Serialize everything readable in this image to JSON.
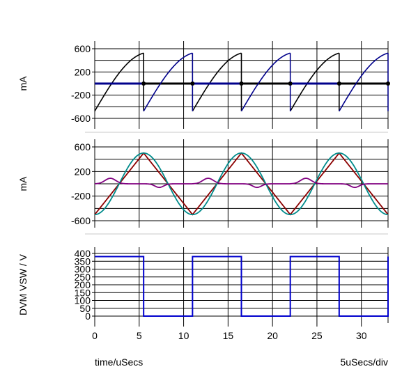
{
  "chart_data": [
    {
      "type": "line",
      "ylabel": "mA",
      "ylim": [
        -700,
        700
      ],
      "yticks": [
        600,
        200,
        -200,
        -600
      ],
      "ytick_labels": [
        "600",
        "200",
        "-200",
        "-600"
      ],
      "grid": true,
      "series": [
        {
          "color": "#000000",
          "segments": [
            [
              [
                0,
                -475
              ],
              [
                5.5,
                525
              ]
            ],
            [
              [
                5.5,
                0
              ],
              [
                11,
                0
              ]
            ],
            [
              [
                11,
                -475
              ],
              [
                16.5,
                525
              ]
            ],
            [
              [
                16.5,
                0
              ],
              [
                22,
                0
              ]
            ],
            [
              [
                22,
                -475
              ],
              [
                27.5,
                525
              ]
            ],
            [
              [
                27.5,
                0
              ],
              [
                33,
                0
              ]
            ]
          ]
        },
        {
          "color": "#00008b",
          "segments": [
            [
              [
                0,
                0
              ],
              [
                5.5,
                0
              ]
            ],
            [
              [
                5.5,
                -475
              ],
              [
                11,
                525
              ]
            ],
            [
              [
                11,
                0
              ],
              [
                16.5,
                0
              ]
            ],
            [
              [
                16.5,
                -475
              ],
              [
                22,
                525
              ]
            ],
            [
              [
                22,
                0
              ],
              [
                27.5,
                0
              ]
            ],
            [
              [
                27.5,
                -475
              ],
              [
                33,
                525
              ]
            ]
          ]
        }
      ],
      "markers_x": [
        5.5,
        11,
        16.5,
        22,
        27.5,
        33
      ],
      "markers_y": 0
    },
    {
      "type": "line",
      "ylabel": "mA",
      "ylim": [
        -700,
        700
      ],
      "yticks": [
        600,
        200,
        -200,
        -600
      ],
      "ytick_labels": [
        "600",
        "200",
        "-200",
        "-600"
      ],
      "grid": true,
      "period": 11,
      "series": [
        {
          "shape": "triangle",
          "amplitude": 500,
          "phase": 0,
          "color": "#8b0000"
        },
        {
          "shape": "sine",
          "amplitude": 500,
          "phase": 0,
          "color": "#008b8b"
        },
        {
          "shape": "bump",
          "amplitude": 90,
          "phase": 0,
          "color": "#800080"
        }
      ]
    },
    {
      "type": "line",
      "ylabel": "DVM VSW / V",
      "ylim": [
        -20,
        420
      ],
      "yticks": [
        400,
        350,
        300,
        250,
        200,
        150,
        100,
        50,
        0
      ],
      "ytick_labels": [
        "400",
        "350",
        "300",
        "250",
        "200",
        "150",
        "100",
        "50",
        "0"
      ],
      "grid": true,
      "series": [
        {
          "color": "#0000cd",
          "points": [
            [
              0,
              380
            ],
            [
              5.5,
              380
            ],
            [
              5.5,
              0
            ],
            [
              11,
              0
            ],
            [
              11,
              380
            ],
            [
              16.5,
              380
            ],
            [
              16.5,
              0
            ],
            [
              22,
              0
            ],
            [
              22,
              380
            ],
            [
              27.5,
              380
            ],
            [
              27.5,
              0
            ],
            [
              33,
              0
            ],
            [
              33,
              380
            ]
          ]
        }
      ],
      "xlim": [
        0,
        33
      ],
      "xticks": [
        0,
        5,
        10,
        15,
        20,
        25,
        30
      ],
      "xtick_labels": [
        "0",
        "5",
        "10",
        "15",
        "20",
        "25",
        "30"
      ]
    }
  ],
  "footer": {
    "xlabel": "time/uSecs",
    "div_label": "5uSecs/div"
  }
}
